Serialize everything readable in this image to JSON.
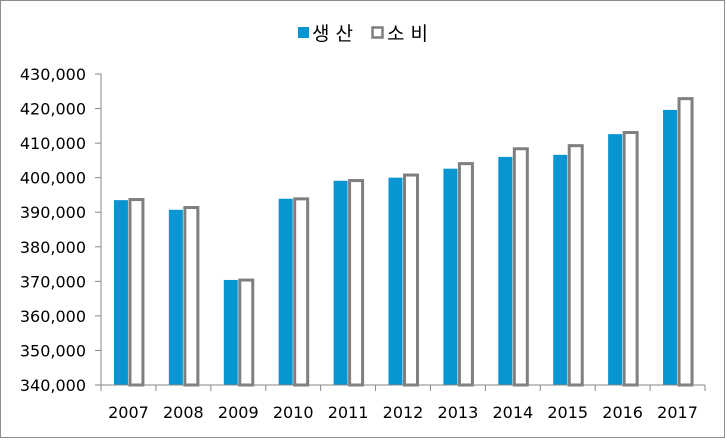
{
  "chart_data": {
    "type": "bar",
    "categories": [
      "2007",
      "2008",
      "2009",
      "2010",
      "2011",
      "2012",
      "2013",
      "2014",
      "2015",
      "2016",
      "2017"
    ],
    "series": [
      {
        "name": "생 산",
        "color": "#0896d2",
        "style": "filled",
        "values": [
          393500,
          390700,
          370400,
          393900,
          399100,
          400000,
          402600,
          406000,
          406600,
          412600,
          419600
        ]
      },
      {
        "name": "소 비",
        "color": "#7f7f7f",
        "style": "outlined",
        "values": [
          394100,
          391800,
          370800,
          394300,
          399600,
          401200,
          404500,
          408800,
          409700,
          413500,
          423300
        ]
      }
    ],
    "ylim": [
      340000,
      430000
    ],
    "yticks": [
      340000,
      350000,
      360000,
      370000,
      380000,
      390000,
      400000,
      410000,
      420000,
      430000
    ],
    "ytick_labels": [
      "340,000",
      "350,000",
      "360,000",
      "370,000",
      "380,000",
      "390,000",
      "400,000",
      "410,000",
      "420,000",
      "430,000"
    ],
    "legend_position": "top",
    "grid": false
  }
}
